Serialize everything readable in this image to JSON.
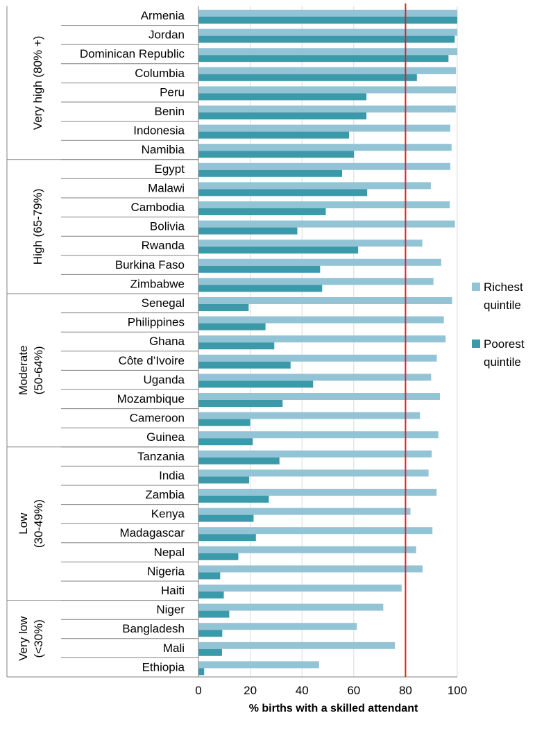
{
  "chart_data": {
    "type": "bar",
    "orientation": "horizontal",
    "xlabel": "% births with a skilled attendant",
    "xlim": [
      0,
      100
    ],
    "xticks": [
      0,
      20,
      40,
      60,
      80,
      100
    ],
    "grid": true,
    "reference_line": {
      "x": 80,
      "color": "#e02020"
    },
    "legend_position": "right",
    "categories": [
      "Armenia",
      "Jordan",
      "Dominican Republic",
      "Columbia",
      "Peru",
      "Benin",
      "Indonesia",
      "Namibia",
      "Egypt",
      "Malawi",
      "Cambodia",
      "Bolivia",
      "Rwanda",
      "Burkina Faso",
      "Zimbabwe",
      "Senegal",
      "Philippines",
      "Ghana",
      "Côte d’Ivoire",
      "Uganda",
      "Mozambique",
      "Cameroon",
      "Guinea",
      "Tanzania",
      "India",
      "Zambia",
      "Kenya",
      "Madagascar",
      "Nepal",
      "Nigeria",
      "Haiti",
      "Niger",
      "Bangladesh",
      "Mali",
      "Ethiopia"
    ],
    "series": [
      {
        "name": "Richest quintile",
        "color": "#93c4d6",
        "values": [
          100,
          100,
          100,
          99.5,
          99.5,
          99.4,
          97.3,
          97.8,
          97.3,
          89.8,
          97.1,
          99.1,
          86.5,
          93.8,
          90.8,
          98,
          94.8,
          95.5,
          92.1,
          89.9,
          93.3,
          85.6,
          92.7,
          90.1,
          88.9,
          92,
          81.9,
          90.4,
          84.1,
          86.6,
          78.5,
          71.4,
          61.2,
          75.9,
          46.6
        ]
      },
      {
        "name": "Poorest quintile",
        "color": "#3a9aaa",
        "values": [
          100,
          99,
          96.6,
          84.4,
          64.9,
          64.9,
          58.2,
          60.1,
          55.5,
          65.2,
          49.2,
          38.2,
          61.7,
          47,
          47.8,
          19.4,
          25.9,
          29.3,
          35.6,
          44.3,
          32.5,
          20,
          21,
          31.3,
          19.6,
          27.2,
          21.3,
          22.2,
          15.4,
          8.4,
          9.8,
          11.9,
          9.2,
          9.1,
          2.2
        ]
      }
    ],
    "groups": [
      {
        "label": "Very high (80% +)",
        "lines": [
          "Very high (80% +)"
        ],
        "start": 0,
        "end": 7
      },
      {
        "label": "High (65-79%)",
        "lines": [
          "High (65-79%)"
        ],
        "start": 8,
        "end": 14
      },
      {
        "label": "Moderate (50-64%)",
        "lines": [
          "Moderate",
          "(50-64%)"
        ],
        "start": 15,
        "end": 22
      },
      {
        "label": "Low (30-49%)",
        "lines": [
          "Low",
          "(30-49%)"
        ],
        "start": 23,
        "end": 30
      },
      {
        "label": "Very low (<30%)",
        "lines": [
          "Very low",
          "(<30%)"
        ],
        "start": 31,
        "end": 34
      }
    ],
    "legend": [
      {
        "lines": [
          "Richest",
          "quintile"
        ],
        "color": "#93c4d6"
      },
      {
        "lines": [
          "Poorest",
          "quintile"
        ],
        "color": "#3a9aaa"
      }
    ]
  }
}
